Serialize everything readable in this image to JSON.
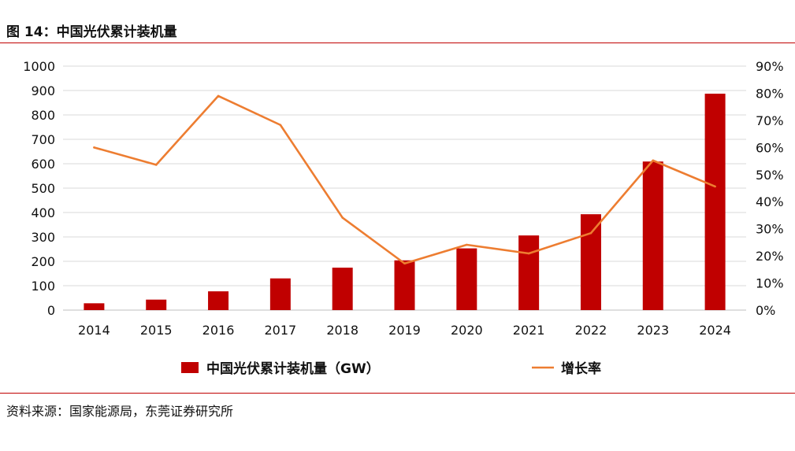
{
  "figure_title": "图 14：中国光伏累计装机量",
  "source": "资料来源：国家能源局，东莞证券研究所",
  "colors": {
    "bar": "#c00000",
    "line": "#ed7d31",
    "grid": "#d9d9d9",
    "rule": "#c00000"
  },
  "chart_data": {
    "type": "bar+line",
    "categories": [
      "2014",
      "2015",
      "2016",
      "2017",
      "2018",
      "2019",
      "2020",
      "2021",
      "2022",
      "2023",
      "2024"
    ],
    "series": [
      {
        "name": "中国光伏累计装机量（GW）",
        "type": "bar",
        "axis": "left",
        "values": [
          28,
          43,
          77,
          130,
          174,
          204,
          253,
          306,
          393,
          609,
          887
        ]
      },
      {
        "name": "增长率",
        "type": "line",
        "axis": "right",
        "values": [
          60,
          53.6,
          79,
          68.3,
          34.1,
          17.2,
          24.1,
          20.9,
          28.4,
          55.2,
          45.6
        ]
      }
    ],
    "yleft": {
      "min": 0,
      "max": 1000,
      "step": 100,
      "ticks": [
        "0",
        "100",
        "200",
        "300",
        "400",
        "500",
        "600",
        "700",
        "800",
        "900",
        "1000"
      ]
    },
    "yright": {
      "min": 0,
      "max": 90,
      "step": 10,
      "ticks": [
        "0%",
        "10%",
        "20%",
        "30%",
        "40%",
        "50%",
        "60%",
        "70%",
        "80%",
        "90%"
      ]
    },
    "legend": {
      "position": "bottom",
      "bar_label": "中国光伏累计装机量（GW）",
      "line_label": "增长率"
    },
    "grid": true
  }
}
